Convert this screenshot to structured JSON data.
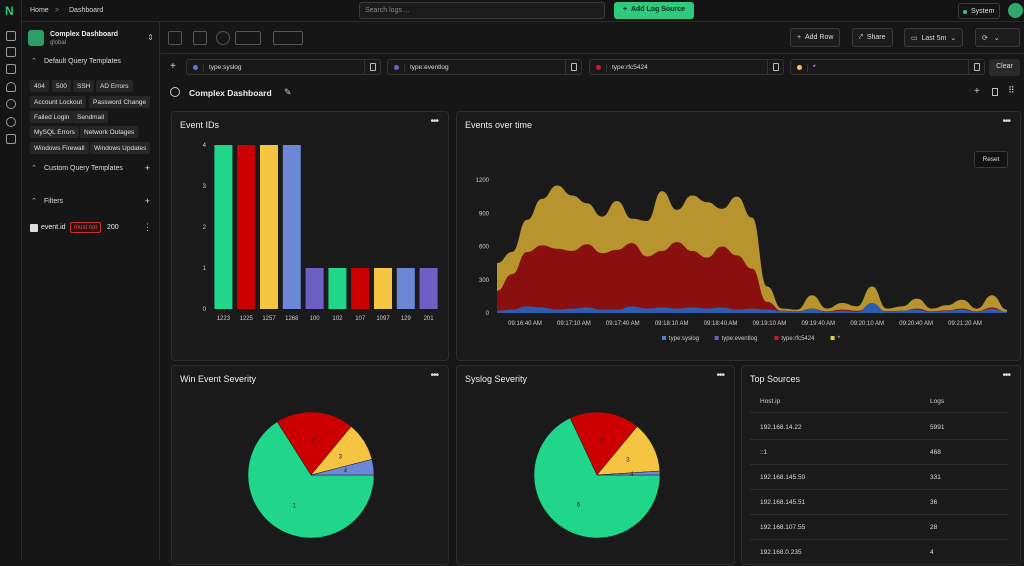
{
  "breadcrumb": {
    "home": "Home",
    "sep": ">",
    "current": "Dashboard"
  },
  "search": {
    "placeholder": "Search logs ..."
  },
  "add_source_label": "Add Log Source",
  "system_label": "System",
  "sidebar": {
    "dashboard_name": "Complex Dashboard",
    "dashboard_scope": "global",
    "default_templates_label": "Default Query Templates",
    "templates": [
      "404",
      "500",
      "SSH",
      "AD Errors",
      "Account Lockout",
      "Password Change",
      "Failed Login",
      "Sendmail",
      "MySQL Errors",
      "Network Outages",
      "Windows Firewall",
      "Windows Updates"
    ],
    "custom_templates_label": "Custom Query Templates",
    "filters_label": "Filters",
    "filter": {
      "key": "event.id",
      "op": "must not",
      "value": "200"
    }
  },
  "toolbar": {
    "add_row": "Add Row",
    "share": "Share",
    "range": "Last 5m"
  },
  "queries": [
    {
      "text": "type:syslog",
      "color": "#4a7fe0"
    },
    {
      "text": "type:eventlog",
      "color": "#6e5fc4"
    },
    {
      "text": "type:rfc5424",
      "color": "#cc1a1a"
    },
    {
      "text": "*",
      "color": "#f5c542"
    }
  ],
  "clear_label": "Clear",
  "dashboard_title": "Complex Dashboard",
  "panels": {
    "event_ids": {
      "title": "Event IDs"
    },
    "events_over_time": {
      "title": "Events over time",
      "reset": "Reset"
    },
    "win_sev": {
      "title": "Win Event Severity"
    },
    "sys_sev": {
      "title": "Syslog Severity"
    },
    "top_sources": {
      "title": "Top Sources",
      "col1": "Host.ip",
      "col2": "Logs",
      "rows": [
        {
          "ip": "192.168.14.22",
          "logs": "5991"
        },
        {
          "ip": "::1",
          "logs": "468"
        },
        {
          "ip": "192.168.145.50",
          "logs": "331"
        },
        {
          "ip": "192.168.145.51",
          "logs": "36"
        },
        {
          "ip": "192.168.107.55",
          "logs": "28"
        },
        {
          "ip": "192.168.0.235",
          "logs": "4"
        }
      ]
    }
  },
  "chart_data": [
    {
      "type": "bar",
      "title": "Event IDs",
      "categories": [
        "1223",
        "1225",
        "1257",
        "1268",
        "100",
        "102",
        "107",
        "1097",
        "129",
        "201"
      ],
      "values": [
        4,
        4,
        4,
        4,
        1,
        1,
        1,
        1,
        1,
        1
      ],
      "colors": [
        "#1fd68a",
        "#cc0000",
        "#f5c542",
        "#6b87d6",
        "#6e5fc4",
        "#1fd68a",
        "#cc0000",
        "#f5c542",
        "#6b87d6",
        "#6e5fc4"
      ],
      "yticks": [
        0,
        1,
        2,
        3,
        4
      ],
      "ylim": [
        0,
        4
      ]
    },
    {
      "type": "area",
      "title": "Events over time",
      "xticks": [
        "09:16:40 AM",
        "09:17:10 AM",
        "09:17:40 AM",
        "09:18:10 AM",
        "09:18:40 AM",
        "09:19:10 AM",
        "09:19:40 AM",
        "09:20:10 AM",
        "09:20:40 AM",
        "09:21:20 AM"
      ],
      "yticks": [
        0,
        300,
        600,
        900,
        1200
      ],
      "ylim": [
        0,
        1200
      ],
      "legend": [
        {
          "name": "type:syslog",
          "color": "#4a7fe0"
        },
        {
          "name": "type:eventlog",
          "color": "#6e5fc4"
        },
        {
          "name": "type:rfc5424",
          "color": "#cc1a1a"
        },
        {
          "name": "*",
          "color": "#f5c542"
        }
      ],
      "series": [
        {
          "name": "*",
          "color": "#b8942e",
          "values": [
            450,
            550,
            840,
            1030,
            1150,
            1060,
            990,
            870,
            1010,
            850,
            830,
            1100,
            930,
            1060,
            1000,
            940,
            1050,
            860,
            240,
            40,
            30,
            160,
            40,
            90,
            60,
            240,
            40,
            60,
            130,
            40,
            70,
            120,
            40,
            160,
            30
          ]
        },
        {
          "name": "type:rfc5424",
          "color": "#8a0f0f",
          "values": [
            200,
            350,
            550,
            610,
            580,
            560,
            620,
            540,
            570,
            630,
            510,
            560,
            640,
            560,
            500,
            600,
            520,
            400,
            100,
            20,
            15,
            40,
            15,
            30,
            20,
            60,
            15,
            20,
            40,
            15,
            25,
            40,
            15,
            50,
            10
          ]
        },
        {
          "name": "type:syslog",
          "color": "#2e5db0",
          "values": [
            20,
            30,
            60,
            50,
            30,
            40,
            50,
            30,
            30,
            60,
            40,
            50,
            40,
            50,
            40,
            50,
            30,
            40,
            30,
            20,
            10,
            40,
            10,
            20,
            10,
            90,
            10,
            20,
            30,
            10,
            20,
            30,
            10,
            40,
            10
          ]
        }
      ]
    },
    {
      "type": "pie",
      "title": "Win Event Severity",
      "labels": [
        "1",
        "2",
        "3",
        "4"
      ],
      "values": [
        66,
        20,
        10,
        4
      ],
      "colors": [
        "#1fd68a",
        "#cc0000",
        "#f5c542",
        "#6b87d6"
      ]
    },
    {
      "type": "pie",
      "title": "Syslog Severity",
      "labels": [
        "6",
        "3",
        "3",
        "4"
      ],
      "values": [
        68,
        18,
        13,
        1
      ],
      "colors": [
        "#1fd68a",
        "#cc0000",
        "#f5c542",
        "#6b87d6"
      ]
    }
  ]
}
